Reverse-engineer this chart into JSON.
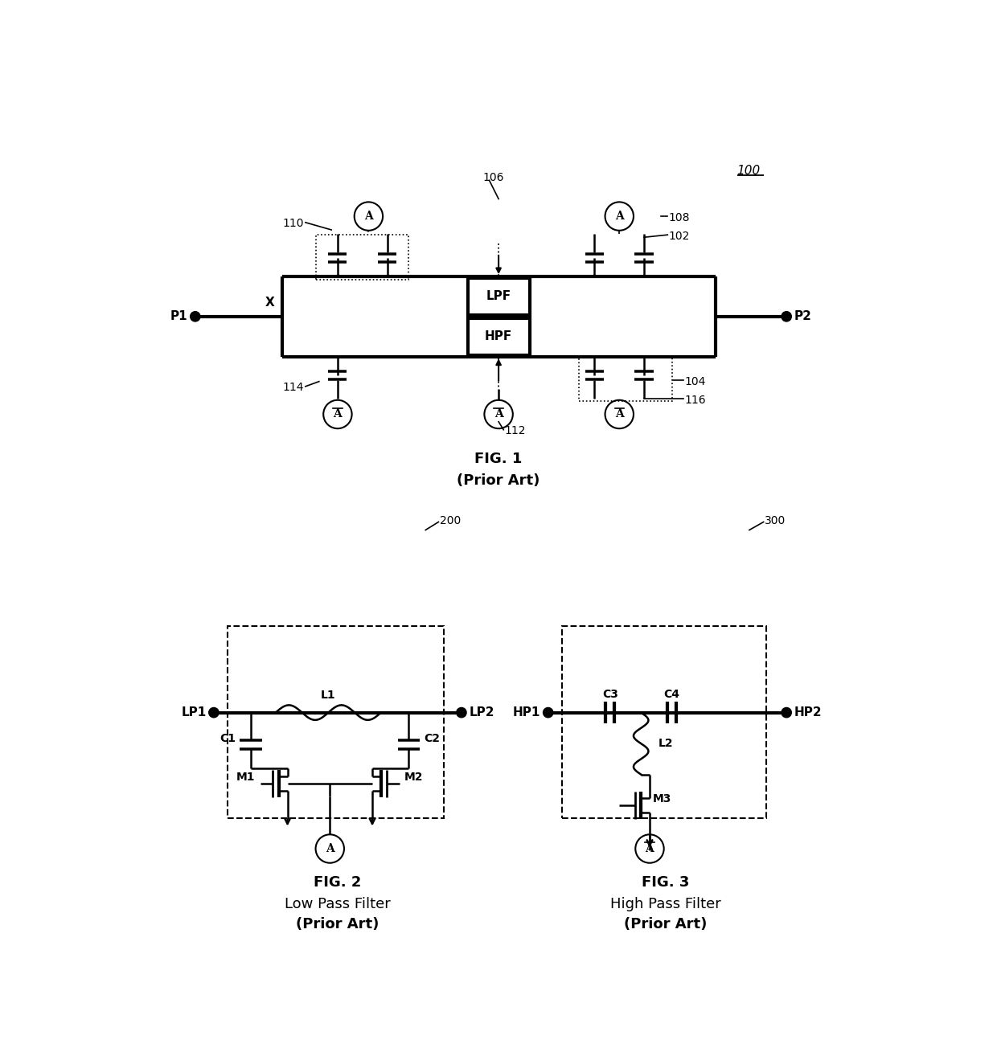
{
  "bg_color": "#ffffff",
  "line_color": "#000000",
  "fig1_title": "FIG. 1",
  "fig1_subtitle": "(Prior Art)",
  "fig2_title": "FIG. 2",
  "fig2_subtitle": "Low Pass Filter",
  "fig2_subtitle2": "(Prior Art)",
  "fig3_title": "FIG. 3",
  "fig3_subtitle": "High Pass Filter",
  "fig3_subtitle2": "(Prior Art)",
  "ref_100": "100",
  "ref_102": "102",
  "ref_104": "104",
  "ref_106": "106",
  "ref_108": "108",
  "ref_110": "110",
  "ref_112": "112",
  "ref_114": "114",
  "ref_116": "116",
  "ref_200": "200",
  "ref_300": "300"
}
